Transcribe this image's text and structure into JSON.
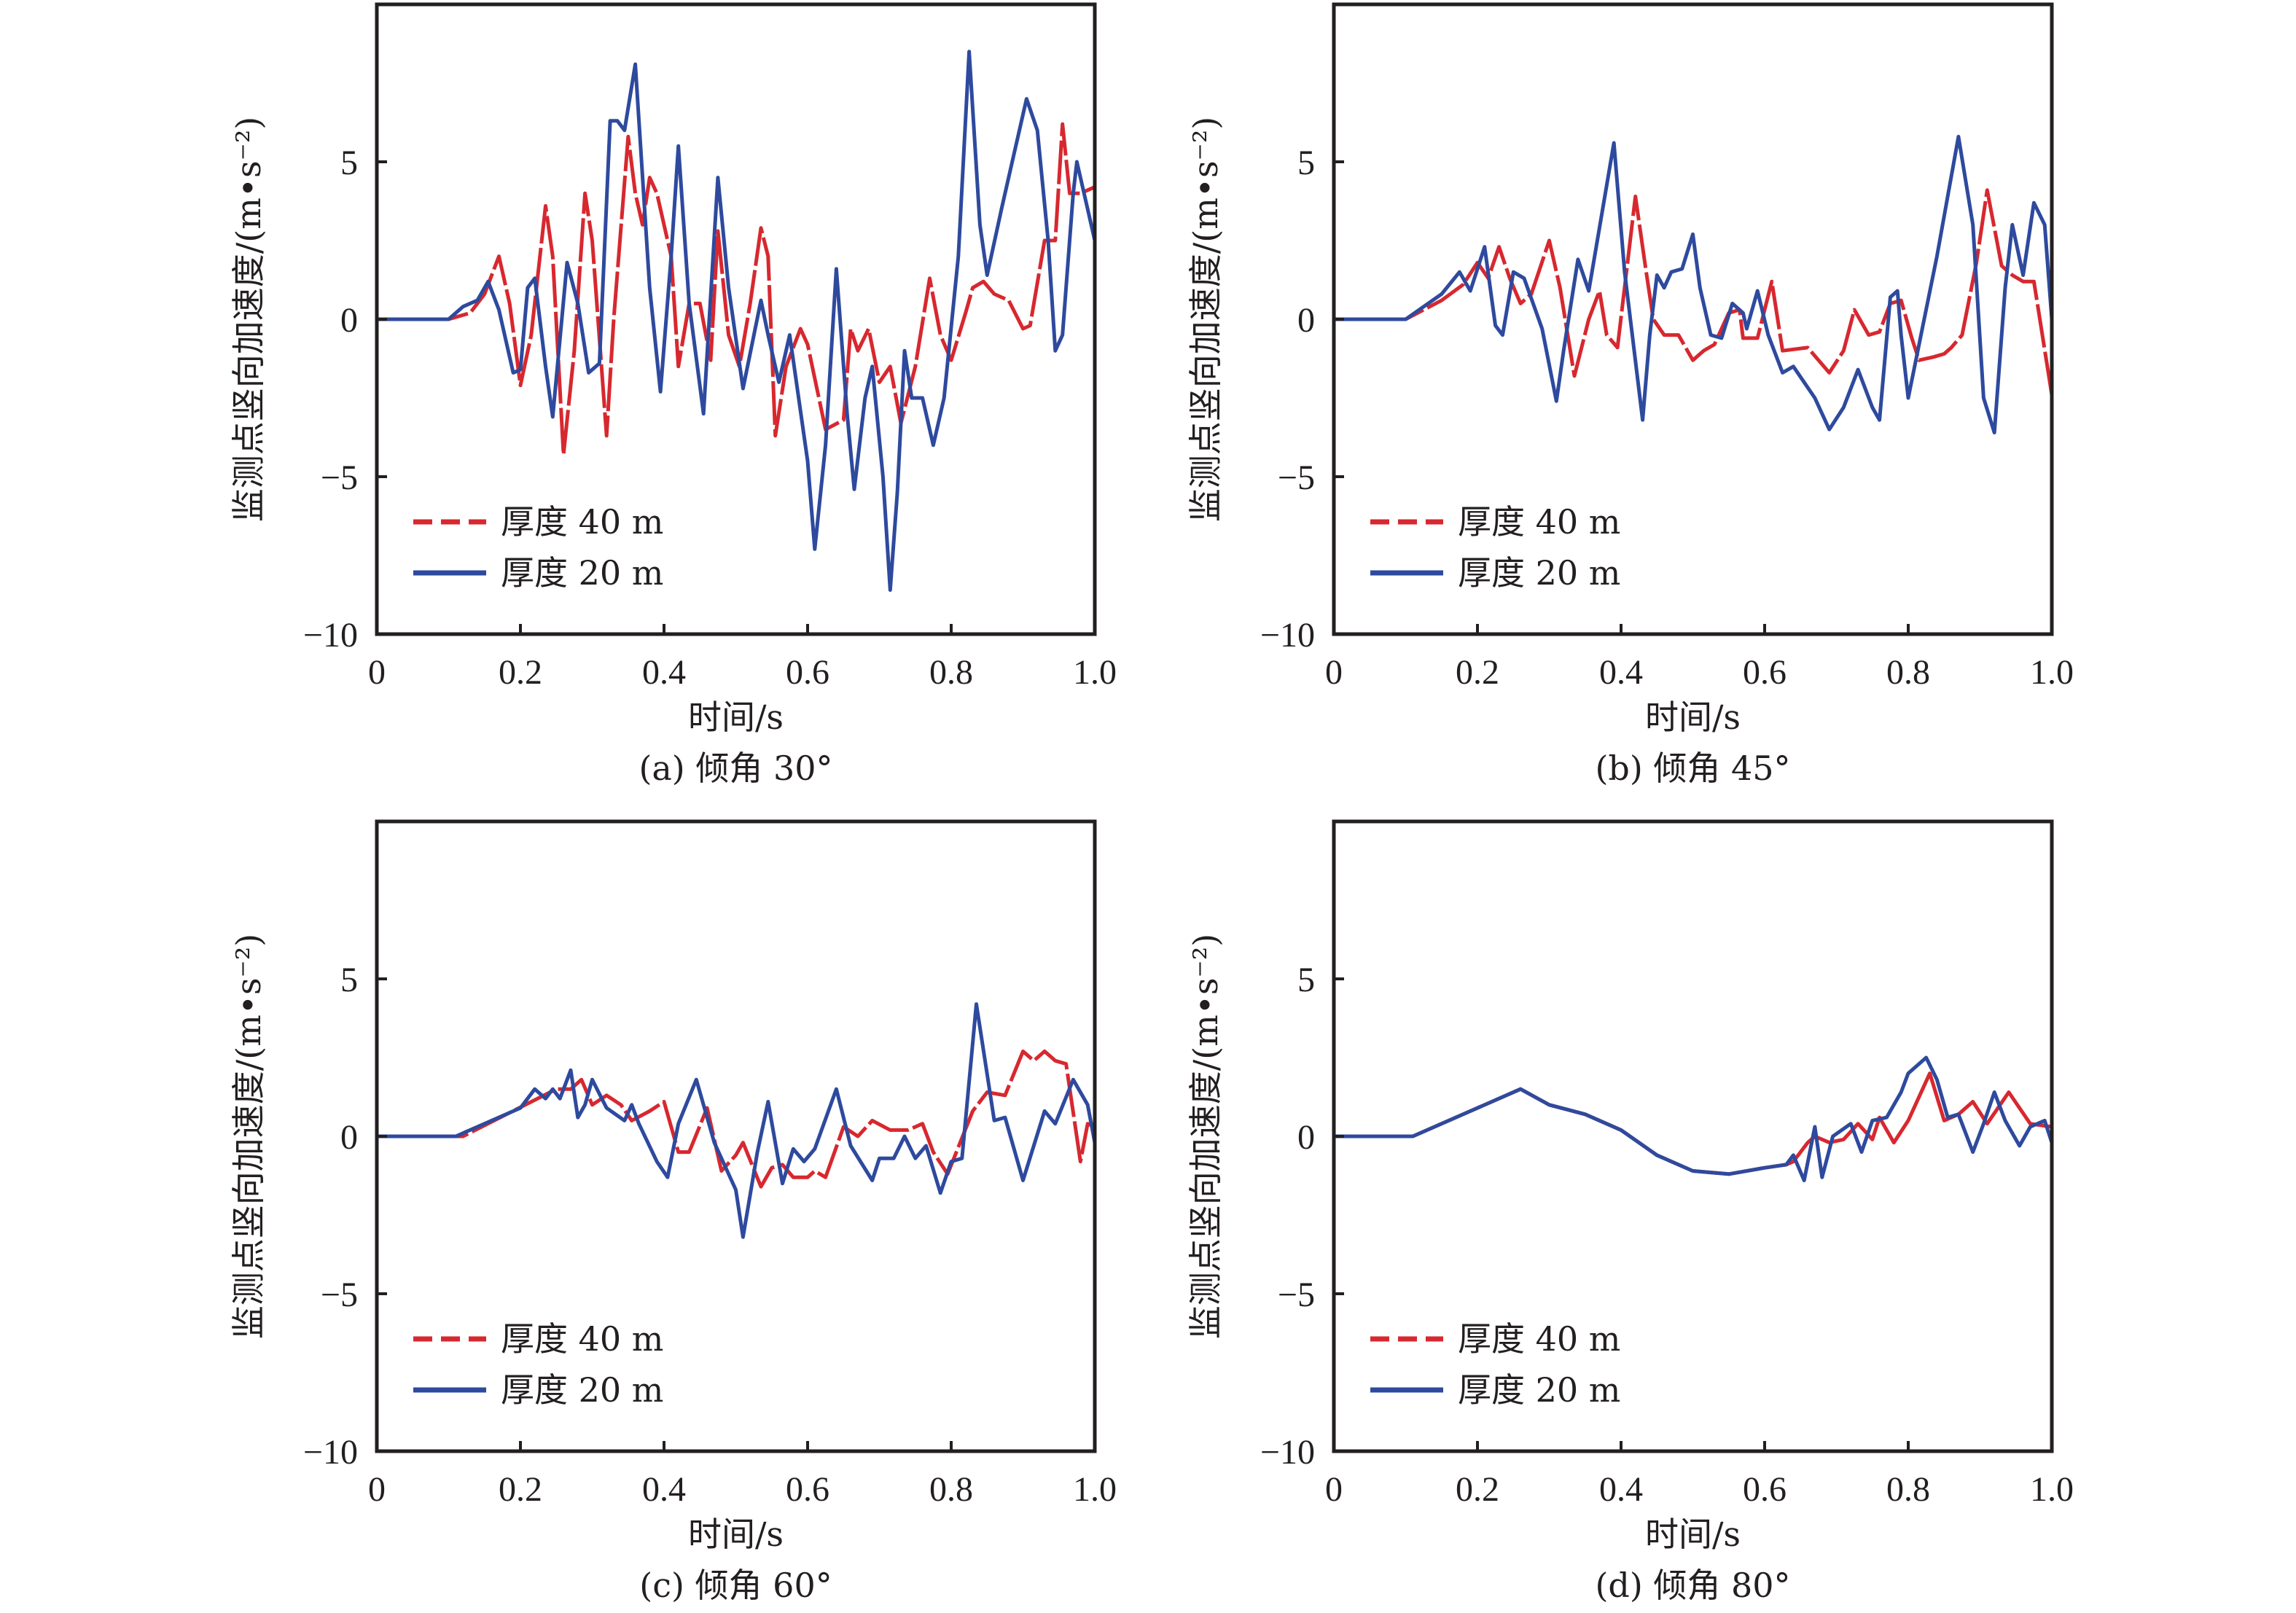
{
  "figure": {
    "series_styles": {
      "40m": {
        "color": "#d7282f",
        "dash": "dashed"
      },
      "20m": {
        "color": "#2e4a9e",
        "dash": "solid"
      }
    }
  },
  "chart_data": [
    {
      "type": "line",
      "id": "a",
      "caption": "(a) 倾角 30°",
      "xlabel": "时间/s",
      "ylabel": "监测点竖向加速度/(m•s⁻²)",
      "xlim": [
        0,
        1.0
      ],
      "ylim": [
        -10,
        10
      ],
      "xticks": [
        0,
        0.2,
        0.4,
        0.6,
        0.8,
        1.0
      ],
      "xtick_labels": [
        "0",
        "0.2",
        "0.4",
        "0.6",
        "0.8",
        "1.0"
      ],
      "yticks": [
        -10,
        -5,
        0,
        5
      ],
      "ytick_labels": [
        "−10",
        "−5",
        "0",
        "5"
      ],
      "legend": {
        "position": "bottom-left",
        "entries": [
          "厚度 40 m",
          "厚度 20 m"
        ]
      },
      "series": [
        {
          "name": "厚度 40 m",
          "key": "40m",
          "x": [
            0,
            0.1,
            0.13,
            0.15,
            0.17,
            0.185,
            0.2,
            0.215,
            0.235,
            0.245,
            0.26,
            0.275,
            0.29,
            0.3,
            0.32,
            0.33,
            0.35,
            0.36,
            0.37,
            0.38,
            0.39,
            0.41,
            0.42,
            0.435,
            0.45,
            0.465,
            0.475,
            0.49,
            0.505,
            0.52,
            0.535,
            0.545,
            0.555,
            0.57,
            0.59,
            0.6,
            0.625,
            0.65,
            0.66,
            0.67,
            0.685,
            0.7,
            0.715,
            0.73,
            0.75,
            0.77,
            0.785,
            0.8,
            0.82,
            0.83,
            0.845,
            0.86,
            0.88,
            0.9,
            0.91,
            0.93,
            0.945,
            0.955,
            0.965,
            0.98,
            1.0
          ],
          "y": [
            0,
            0,
            0.2,
            0.8,
            2.0,
            0.5,
            -2.1,
            -0.5,
            3.6,
            2.0,
            -4.3,
            -1.0,
            4.0,
            2.5,
            -3.7,
            0.0,
            5.8,
            4.0,
            3.0,
            4.5,
            4.0,
            2.0,
            -1.5,
            0.5,
            0.5,
            -1.3,
            2.8,
            -0.5,
            -1.5,
            0.5,
            2.9,
            2.0,
            -3.7,
            -1.5,
            -0.3,
            -0.8,
            -3.5,
            -3.2,
            -0.3,
            -1.0,
            -0.3,
            -2.0,
            -1.5,
            -3.3,
            -1.5,
            1.3,
            -0.5,
            -1.3,
            0.2,
            1.0,
            1.2,
            0.8,
            0.6,
            -0.3,
            -0.2,
            2.5,
            2.5,
            6.2,
            4.0,
            4.0,
            4.2
          ]
        },
        {
          "name": "厚度 20 m",
          "key": "20m",
          "x": [
            0,
            0.1,
            0.12,
            0.14,
            0.155,
            0.17,
            0.19,
            0.2,
            0.21,
            0.22,
            0.235,
            0.245,
            0.265,
            0.28,
            0.295,
            0.31,
            0.325,
            0.335,
            0.345,
            0.36,
            0.38,
            0.395,
            0.41,
            0.42,
            0.435,
            0.455,
            0.475,
            0.49,
            0.51,
            0.535,
            0.545,
            0.56,
            0.575,
            0.6,
            0.61,
            0.625,
            0.64,
            0.655,
            0.665,
            0.68,
            0.69,
            0.705,
            0.715,
            0.725,
            0.735,
            0.745,
            0.76,
            0.775,
            0.79,
            0.81,
            0.825,
            0.84,
            0.85,
            0.87,
            0.885,
            0.905,
            0.92,
            0.935,
            0.945,
            0.955,
            0.97,
            0.975,
            0.99,
            1.0,
            1.0
          ],
          "y": [
            0,
            0,
            0.4,
            0.6,
            1.2,
            0.3,
            -1.7,
            -1.6,
            1.0,
            1.3,
            -1.5,
            -3.1,
            1.8,
            0.5,
            -1.7,
            -1.4,
            6.3,
            6.3,
            6.0,
            8.1,
            1.0,
            -2.3,
            2.0,
            5.5,
            0.5,
            -3.0,
            4.5,
            1.0,
            -2.2,
            0.6,
            -0.5,
            -2.0,
            -0.5,
            -4.5,
            -7.3,
            -4.0,
            1.6,
            -3.0,
            -5.4,
            -2.5,
            -1.5,
            -5.0,
            -8.6,
            -5.5,
            -1.0,
            -2.5,
            -2.5,
            -4.0,
            -2.5,
            2.0,
            8.5,
            3.0,
            1.4,
            3.5,
            5.0,
            7.0,
            6.0,
            2.5,
            -1.0,
            -0.5,
            4.0,
            5.0,
            3.5,
            2.5,
            -2.5
          ]
        }
      ]
    },
    {
      "type": "line",
      "id": "b",
      "caption": "(b) 倾角 45°",
      "xlabel": "时间/s",
      "ylabel": "监测点竖向加速度/(m•s⁻²)",
      "xlim": [
        0,
        1.0
      ],
      "ylim": [
        -10,
        10
      ],
      "xticks": [
        0,
        0.2,
        0.4,
        0.6,
        0.8,
        1.0
      ],
      "xtick_labels": [
        "0",
        "0.2",
        "0.4",
        "0.6",
        "0.8",
        "1.0"
      ],
      "yticks": [
        -10,
        -5,
        0,
        5
      ],
      "ytick_labels": [
        "−10",
        "−5",
        "0",
        "5"
      ],
      "legend": {
        "position": "bottom-left",
        "entries": [
          "厚度 40 m",
          "厚度 20 m"
        ]
      },
      "series": [
        {
          "name": "厚度 40 m",
          "key": "40m",
          "x": [
            0,
            0.1,
            0.15,
            0.18,
            0.2,
            0.215,
            0.23,
            0.245,
            0.26,
            0.275,
            0.3,
            0.315,
            0.335,
            0.355,
            0.37,
            0.38,
            0.395,
            0.42,
            0.435,
            0.445,
            0.46,
            0.48,
            0.5,
            0.515,
            0.53,
            0.55,
            0.565,
            0.57,
            0.59,
            0.61,
            0.625,
            0.66,
            0.69,
            0.71,
            0.725,
            0.745,
            0.76,
            0.775,
            0.79,
            0.805,
            0.815,
            0.835,
            0.85,
            0.86,
            0.875,
            0.895,
            0.91,
            0.93,
            0.945,
            0.96,
            0.975,
            1.0
          ],
          "y": [
            0,
            0,
            0.6,
            1.1,
            1.8,
            1.3,
            2.3,
            1.3,
            0.5,
            0.8,
            2.5,
            1.0,
            -1.8,
            0.0,
            0.9,
            -0.5,
            -0.9,
            3.9,
            1.5,
            0.0,
            -0.5,
            -0.5,
            -1.3,
            -1.0,
            -0.8,
            0.2,
            0.3,
            -0.6,
            -0.6,
            1.2,
            -1.0,
            -0.9,
            -1.7,
            -1.0,
            0.3,
            -0.5,
            -0.4,
            0.5,
            0.6,
            -0.6,
            -1.3,
            -1.2,
            -1.1,
            -0.9,
            -0.5,
            1.8,
            4.1,
            1.7,
            1.4,
            1.2,
            1.2,
            -2.4
          ]
        },
        {
          "name": "厚度 20 m",
          "key": "20m",
          "x": [
            0,
            0.1,
            0.15,
            0.175,
            0.19,
            0.21,
            0.225,
            0.235,
            0.25,
            0.265,
            0.29,
            0.31,
            0.32,
            0.34,
            0.355,
            0.39,
            0.405,
            0.43,
            0.44,
            0.45,
            0.46,
            0.47,
            0.485,
            0.5,
            0.51,
            0.525,
            0.54,
            0.555,
            0.57,
            0.575,
            0.59,
            0.605,
            0.625,
            0.64,
            0.67,
            0.69,
            0.71,
            0.73,
            0.75,
            0.76,
            0.775,
            0.785,
            0.79,
            0.8,
            0.84,
            0.87,
            0.89,
            0.905,
            0.92,
            0.935,
            0.945,
            0.96,
            0.975,
            0.99,
            1.0
          ],
          "y": [
            0,
            0,
            0.8,
            1.5,
            0.9,
            2.3,
            -0.2,
            -0.5,
            1.5,
            1.3,
            -0.3,
            -2.6,
            -1.0,
            1.9,
            0.9,
            5.6,
            1.5,
            -3.2,
            -0.5,
            1.4,
            1.0,
            1.5,
            1.6,
            2.7,
            1.0,
            -0.5,
            -0.6,
            0.5,
            0.2,
            -0.3,
            0.9,
            -0.5,
            -1.7,
            -1.5,
            -2.5,
            -3.5,
            -2.8,
            -1.6,
            -2.8,
            -3.2,
            0.7,
            0.9,
            -0.5,
            -2.5,
            2.0,
            5.8,
            3.0,
            -2.5,
            -3.6,
            1.0,
            3.0,
            1.4,
            3.7,
            3.0,
            0
          ]
        }
      ]
    },
    {
      "type": "line",
      "id": "c",
      "caption": "(c) 倾角 60°",
      "xlabel": "时间/s",
      "ylabel": "监测点竖向加速度/(m•s⁻²)",
      "xlim": [
        0,
        1.0
      ],
      "ylim": [
        -10,
        10
      ],
      "xticks": [
        0,
        0.2,
        0.4,
        0.6,
        0.8,
        1.0
      ],
      "xtick_labels": [
        "0",
        "0.2",
        "0.4",
        "0.6",
        "0.8",
        "1.0"
      ],
      "yticks": [
        -10,
        -5,
        0,
        5
      ],
      "ytick_labels": [
        "−10",
        "−5",
        "0",
        "5"
      ],
      "legend": {
        "position": "bottom-left",
        "entries": [
          "厚度 40 m",
          "厚度 20 m"
        ]
      },
      "series": [
        {
          "name": "厚度 40 m",
          "key": "40m",
          "x": [
            0,
            0.12,
            0.25,
            0.27,
            0.285,
            0.3,
            0.32,
            0.34,
            0.355,
            0.38,
            0.4,
            0.42,
            0.435,
            0.46,
            0.48,
            0.5,
            0.51,
            0.535,
            0.55,
            0.565,
            0.58,
            0.6,
            0.61,
            0.625,
            0.65,
            0.67,
            0.69,
            0.715,
            0.74,
            0.76,
            0.775,
            0.795,
            0.83,
            0.85,
            0.875,
            0.9,
            0.915,
            0.93,
            0.945,
            0.96,
            0.98,
            0.99,
            1.0
          ],
          "y": [
            0,
            0,
            1.5,
            1.5,
            1.8,
            1.0,
            1.3,
            1.0,
            0.5,
            0.8,
            1.1,
            -0.5,
            -0.5,
            0.9,
            -1.1,
            -0.6,
            -0.2,
            -1.6,
            -1.0,
            -0.9,
            -1.3,
            -1.3,
            -1.1,
            -1.3,
            0.3,
            0.0,
            0.5,
            0.2,
            0.2,
            0.4,
            -0.5,
            -1.2,
            0.8,
            1.4,
            1.3,
            2.7,
            2.4,
            2.7,
            2.4,
            2.3,
            -0.8,
            0.4,
            0.3
          ]
        },
        {
          "name": "厚度 20 m",
          "key": "20m",
          "x": [
            0,
            0.11,
            0.2,
            0.22,
            0.235,
            0.245,
            0.255,
            0.27,
            0.28,
            0.29,
            0.3,
            0.32,
            0.345,
            0.355,
            0.365,
            0.39,
            0.405,
            0.42,
            0.445,
            0.47,
            0.5,
            0.51,
            0.53,
            0.545,
            0.565,
            0.58,
            0.595,
            0.61,
            0.64,
            0.66,
            0.69,
            0.7,
            0.72,
            0.735,
            0.75,
            0.765,
            0.785,
            0.8,
            0.815,
            0.835,
            0.86,
            0.875,
            0.9,
            0.93,
            0.945,
            0.97,
            0.99,
            1.0
          ],
          "y": [
            0,
            0,
            0.9,
            1.5,
            1.2,
            1.5,
            1.2,
            2.1,
            0.6,
            1.0,
            1.8,
            0.9,
            0.5,
            1.0,
            0.4,
            -0.8,
            -1.3,
            0.4,
            1.8,
            -0.2,
            -1.7,
            -3.2,
            -0.5,
            1.1,
            -1.5,
            -0.4,
            -0.8,
            -0.4,
            1.5,
            -0.3,
            -1.4,
            -0.7,
            -0.7,
            0.0,
            -0.7,
            -0.3,
            -1.8,
            -0.8,
            -0.7,
            4.2,
            0.5,
            0.6,
            -1.4,
            0.8,
            0.4,
            1.8,
            1.0,
            -0.2
          ]
        }
      ]
    },
    {
      "type": "line",
      "id": "d",
      "caption": "(d) 倾角 80°",
      "xlabel": "时间/s",
      "ylabel": "监测点竖向加速度/(m•s⁻²)",
      "xlim": [
        0,
        1.0
      ],
      "ylim": [
        -10,
        10
      ],
      "xticks": [
        0,
        0.2,
        0.4,
        0.6,
        0.8,
        1.0
      ],
      "xtick_labels": [
        "0",
        "0.2",
        "0.4",
        "0.6",
        "0.8",
        "1.0"
      ],
      "yticks": [
        -10,
        -5,
        0,
        5
      ],
      "ytick_labels": [
        "−10",
        "−5",
        "0",
        "5"
      ],
      "legend": {
        "position": "bottom-left",
        "entries": [
          "厚度 40 m",
          "厚度 20 m"
        ]
      },
      "series": [
        {
          "name": "厚度 40 m",
          "key": "40m",
          "x": [
            0,
            0.11,
            0.26,
            0.3,
            0.35,
            0.4,
            0.45,
            0.5,
            0.55,
            0.6,
            0.63,
            0.64,
            0.66,
            0.67,
            0.69,
            0.71,
            0.73,
            0.75,
            0.76,
            0.78,
            0.8,
            0.83,
            0.85,
            0.87,
            0.89,
            0.91,
            0.94,
            0.97,
            1.0
          ],
          "y": [
            0,
            0,
            1.5,
            1.0,
            0.7,
            0.2,
            -0.6,
            -1.1,
            -1.2,
            -1.0,
            -0.9,
            -0.8,
            -0.2,
            0.0,
            -0.2,
            -0.1,
            0.4,
            -0.1,
            0.6,
            -0.2,
            0.5,
            2.0,
            0.5,
            0.7,
            1.1,
            0.4,
            1.4,
            0.4,
            0.3
          ]
        },
        {
          "name": "厚度 20 m",
          "key": "20m",
          "x": [
            0,
            0.11,
            0.26,
            0.3,
            0.35,
            0.4,
            0.45,
            0.5,
            0.55,
            0.6,
            0.63,
            0.64,
            0.655,
            0.67,
            0.68,
            0.695,
            0.72,
            0.735,
            0.75,
            0.77,
            0.79,
            0.8,
            0.825,
            0.84,
            0.855,
            0.87,
            0.89,
            0.905,
            0.92,
            0.935,
            0.955,
            0.97,
            0.99,
            1.0
          ],
          "y": [
            0,
            0,
            1.5,
            1.0,
            0.7,
            0.2,
            -0.6,
            -1.1,
            -1.2,
            -1.0,
            -0.9,
            -0.6,
            -1.4,
            0.3,
            -1.3,
            0.0,
            0.4,
            -0.5,
            0.5,
            0.6,
            1.4,
            2.0,
            2.5,
            1.8,
            0.6,
            0.7,
            -0.5,
            0.4,
            1.4,
            0.5,
            -0.3,
            0.3,
            0.5,
            -0.2
          ]
        }
      ]
    }
  ]
}
